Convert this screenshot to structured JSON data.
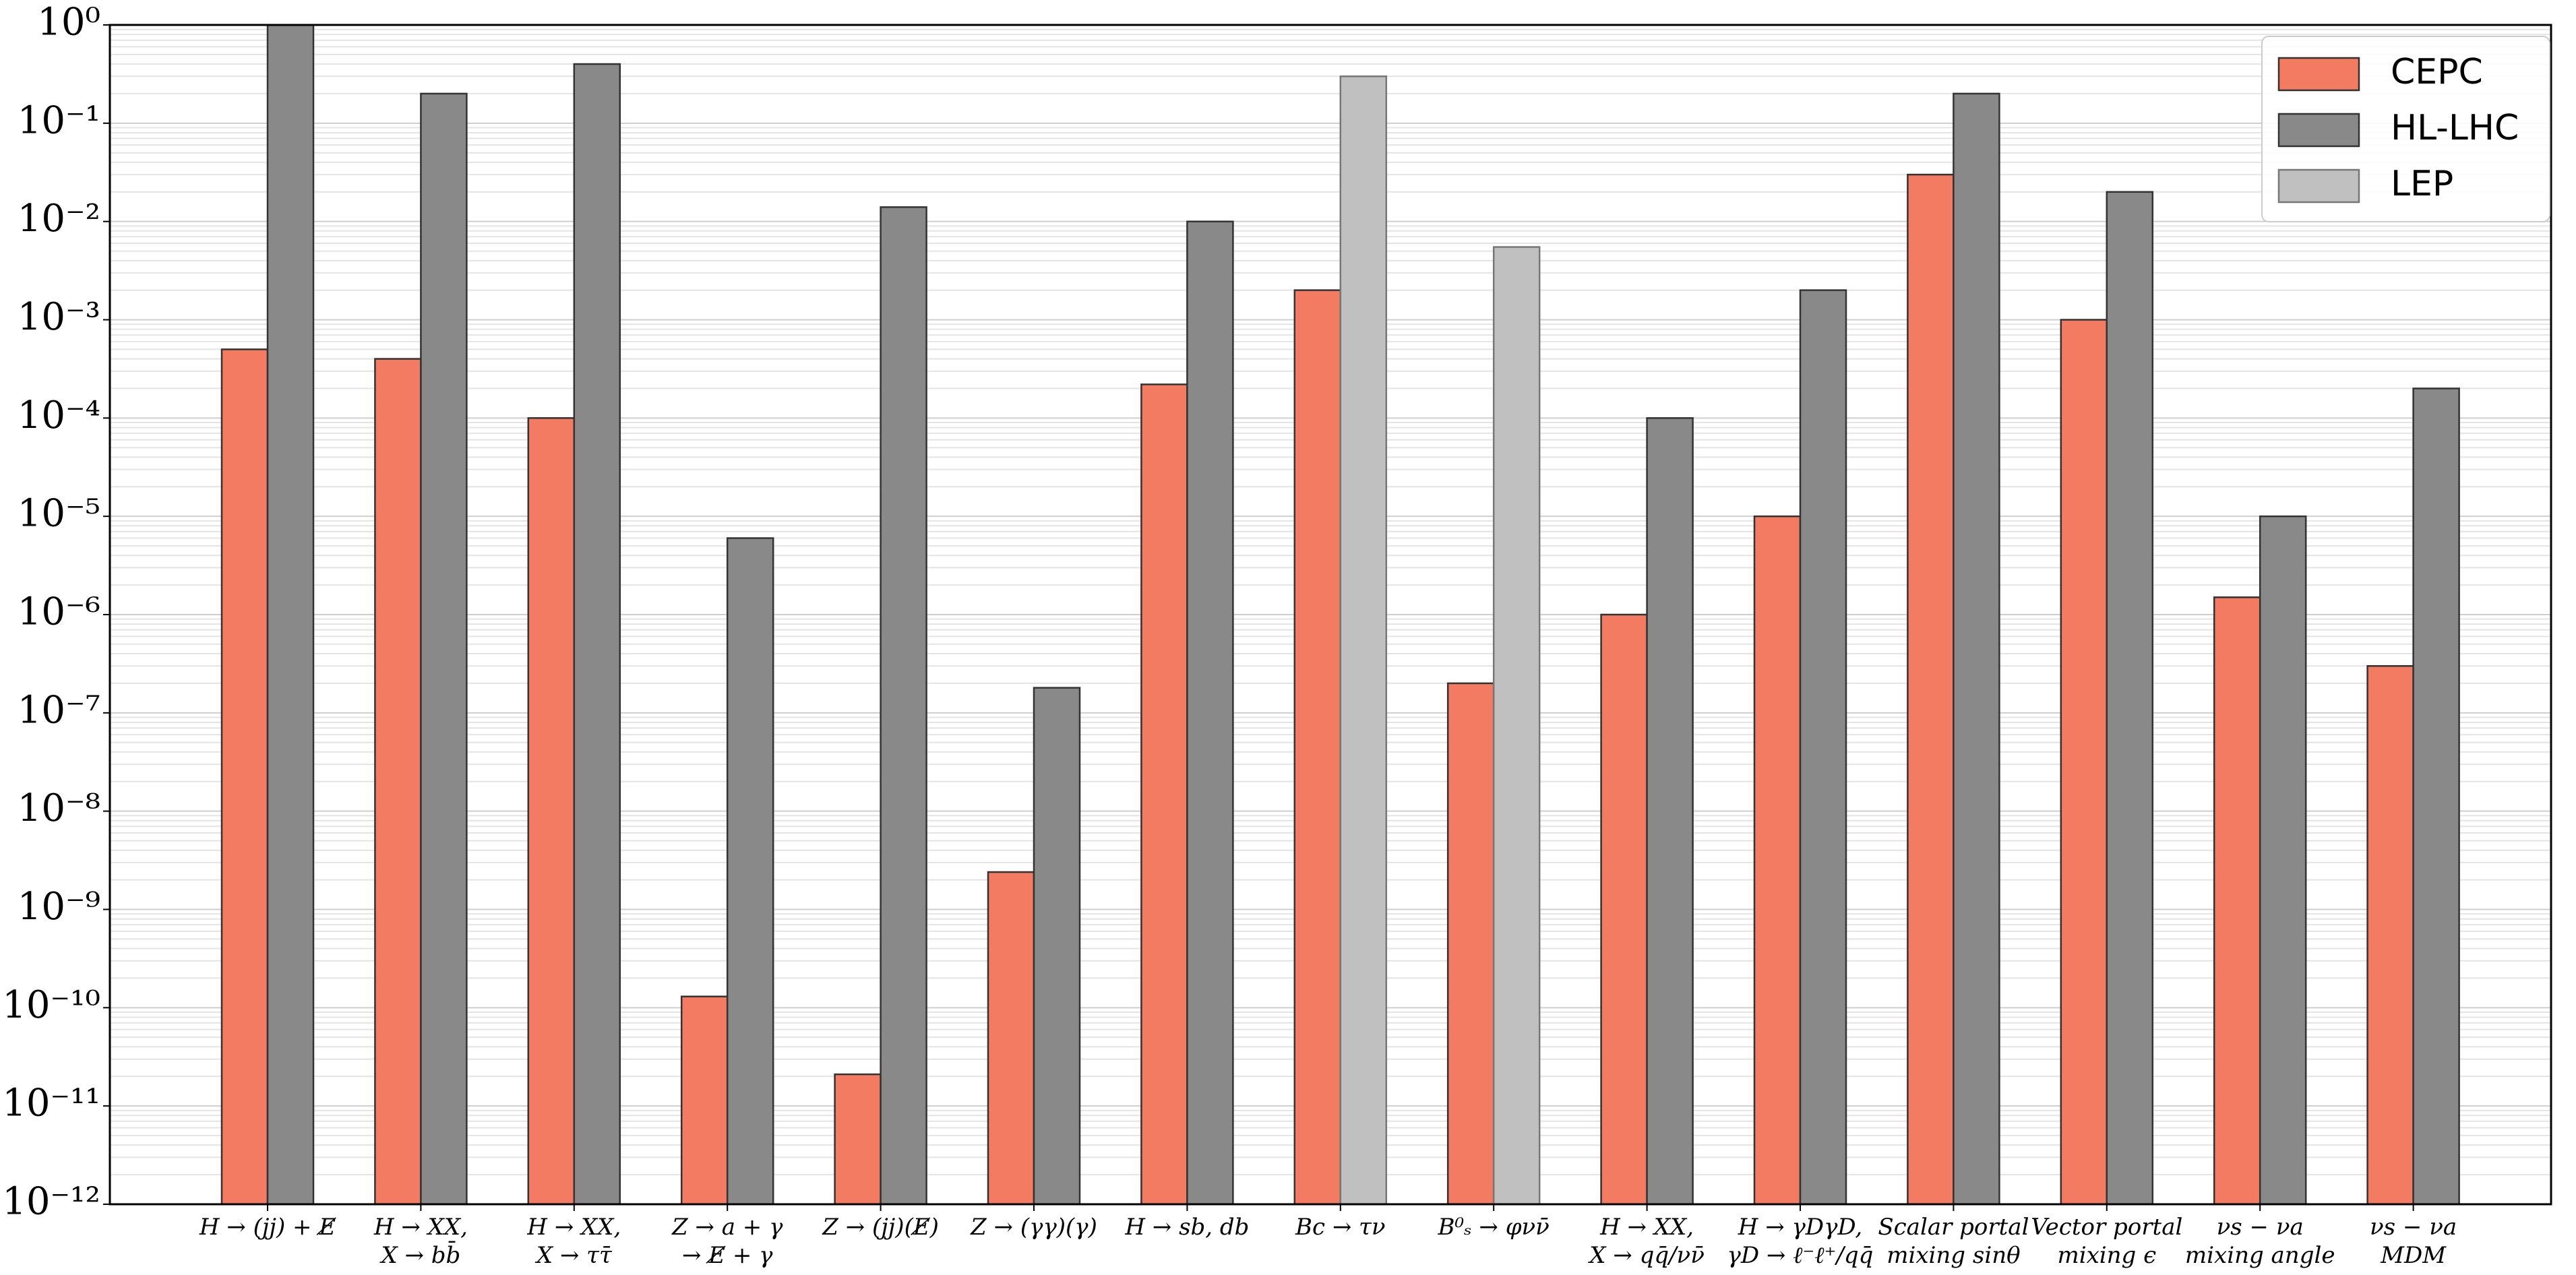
{
  "chart_data": {
    "type": "bar",
    "log_scale": true,
    "grid": true,
    "legend_position": "upper right",
    "categories": [
      [
        "H → (jj) + E̸"
      ],
      [
        "H → XX,",
        "X → bb̄"
      ],
      [
        "H → XX,",
        "X → ττ̄"
      ],
      [
        "Z → a + γ",
        "→ E̸ + γ"
      ],
      [
        "Z → (jj)(E̸)"
      ],
      [
        "Z → (γγ)(γ)"
      ],
      [
        "H → sb, db"
      ],
      [
        "Bc → τν"
      ],
      [
        "B⁰ₛ → φνν̄"
      ],
      [
        "H → XX,",
        "X → qq̄/νν̄"
      ],
      [
        "H → γDγD,",
        "γD → ℓ⁻ℓ⁺/qq̄"
      ],
      [
        "Scalar portal",
        "mixing sinθ"
      ],
      [
        "Vector portal",
        "mixing ϵ"
      ],
      [
        "νs − νa",
        "mixing angle"
      ],
      [
        "νs − νa",
        "MDM"
      ]
    ],
    "series": [
      {
        "name": "CEPC",
        "color": "#f27b61",
        "values": [
          0.0005,
          0.0004,
          0.0001,
          1.3e-10,
          2.1e-11,
          2.4e-09,
          0.00022,
          0.002,
          2e-07,
          1e-06,
          1e-05,
          0.03,
          0.001,
          1.5e-06,
          3e-07
        ]
      },
      {
        "name": "HL-LHC",
        "color": "#898989",
        "values": [
          1,
          0.2,
          0.4,
          6e-06,
          0.014,
          1.8e-07,
          0.01,
          null,
          null,
          0.0001,
          0.002,
          0.2,
          0.02,
          1e-05,
          0.0002
        ]
      },
      {
        "name": "LEP",
        "color": "#c0c0c0",
        "values": [
          null,
          null,
          null,
          null,
          null,
          null,
          null,
          0.3,
          0.0055,
          null,
          null,
          null,
          null,
          null,
          null
        ]
      }
    ],
    "ylim": [
      1e-12,
      1
    ],
    "yticks": [
      {
        "value": 1e-12,
        "label": "10⁻¹²"
      },
      {
        "value": 1e-11,
        "label": "10⁻¹¹"
      },
      {
        "value": 1e-10,
        "label": "10⁻¹⁰"
      },
      {
        "value": 1e-09,
        "label": "10⁻⁹"
      },
      {
        "value": 1e-08,
        "label": "10⁻⁸"
      },
      {
        "value": 1e-07,
        "label": "10⁻⁷"
      },
      {
        "value": 1e-06,
        "label": "10⁻⁶"
      },
      {
        "value": 1e-05,
        "label": "10⁻⁵"
      },
      {
        "value": 0.0001,
        "label": "10⁻⁴"
      },
      {
        "value": 0.001,
        "label": "10⁻³"
      },
      {
        "value": 0.01,
        "label": "10⁻²"
      },
      {
        "value": 0.1,
        "label": "10⁻¹"
      },
      {
        "value": 1,
        "label": "10⁰"
      }
    ]
  }
}
